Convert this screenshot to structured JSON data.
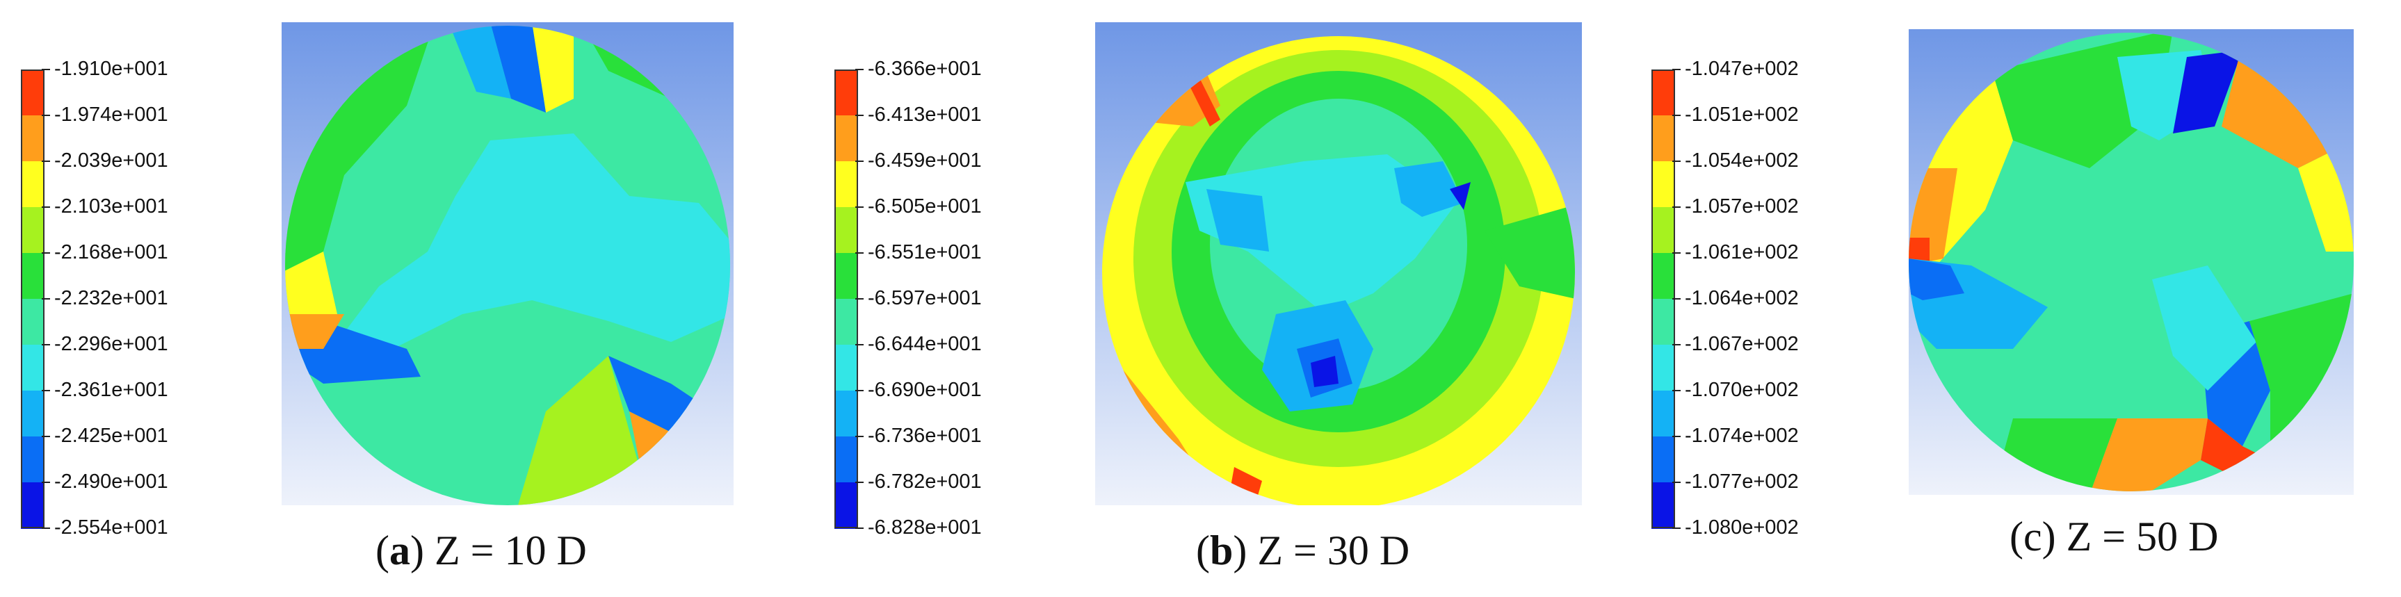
{
  "panels": [
    {
      "label": "a",
      "caption": "Z = 10 D",
      "legend_values": [
        "-1.910e+001",
        "-1.974e+001",
        "-2.039e+001",
        "-2.103e+001",
        "-2.168e+001",
        "-2.232e+001",
        "-2.296e+001",
        "-2.361e+001",
        "-2.425e+001",
        "-2.490e+001",
        "-2.554e+001"
      ]
    },
    {
      "label": "b",
      "caption": "Z = 30 D",
      "legend_values": [
        "-6.366e+001",
        "-6.413e+001",
        "-6.459e+001",
        "-6.505e+001",
        "-6.551e+001",
        "-6.597e+001",
        "-6.644e+001",
        "-6.690e+001",
        "-6.736e+001",
        "-6.782e+001",
        "-6.828e+001"
      ]
    },
    {
      "label": "c",
      "caption": "Z = 50 D",
      "legend_values": [
        "-1.047e+002",
        "-1.051e+002",
        "-1.054e+002",
        "-1.057e+002",
        "-1.061e+002",
        "-1.064e+002",
        "-1.067e+002",
        "-1.070e+002",
        "-1.074e+002",
        "-1.077e+002",
        "-1.080e+002"
      ]
    }
  ],
  "colormap": [
    "#ff3d0a",
    "#ff9e1c",
    "#ffff1f",
    "#a6f21f",
    "#29e03a",
    "#3de8a3",
    "#33e6e6",
    "#14b2f5",
    "#0a6ef5",
    "#0a14e6"
  ]
}
